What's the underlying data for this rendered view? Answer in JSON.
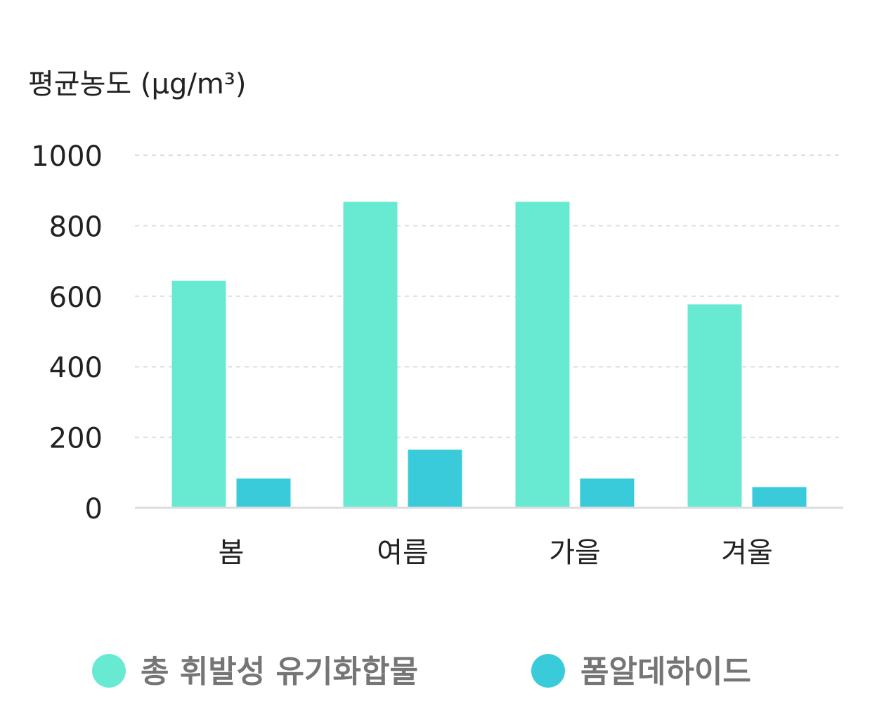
{
  "chart_data": {
    "type": "bar",
    "ylabel": "평균농도 (μg/m³)",
    "categories": [
      "봄",
      "여름",
      "가을",
      "겨울"
    ],
    "yticks": [
      "1000",
      "800",
      "600",
      "400",
      "200",
      "0"
    ],
    "ylim": [
      0,
      1000
    ],
    "grid": true,
    "legend_position": "bottom",
    "series": [
      {
        "name": "총 휘발성 유기화합물",
        "color": "#68ead2",
        "values": [
          644,
          868,
          868,
          577
        ]
      },
      {
        "name": "폼알데하이드",
        "color": "#3acbdb",
        "values": [
          83,
          165,
          83,
          59
        ]
      }
    ],
    "colors": {
      "grid": "#dddddd",
      "axis": "#dddddd",
      "text": "#222222",
      "legend_text": "#757575"
    }
  }
}
